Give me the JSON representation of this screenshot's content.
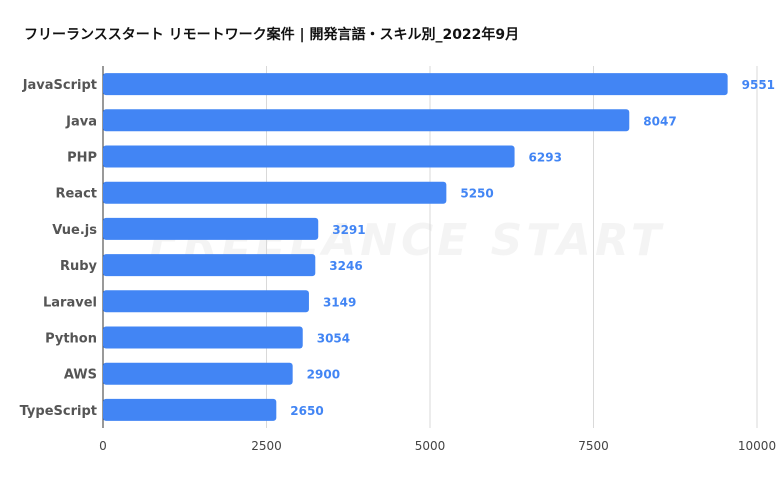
{
  "chart_data": {
    "type": "bar",
    "orientation": "horizontal",
    "title": "フリーランススタート リモートワーク案件 | 開発言語・スキル別_2022年9月",
    "watermark": "FREELANCE START",
    "categories": [
      "JavaScript",
      "Java",
      "PHP",
      "React",
      "Vue.js",
      "Ruby",
      "Laravel",
      "Python",
      "AWS",
      "TypeScript"
    ],
    "values": [
      9551,
      8047,
      6293,
      5250,
      3291,
      3246,
      3149,
      3054,
      2900,
      2650
    ],
    "xlim": [
      0,
      10000
    ],
    "xticks": [
      0,
      2500,
      5000,
      7500,
      10000
    ],
    "xlabel": "",
    "ylabel": "",
    "grid": true,
    "legend": "none",
    "bar_color": "#4285f4",
    "label_color": "#4285f4"
  }
}
